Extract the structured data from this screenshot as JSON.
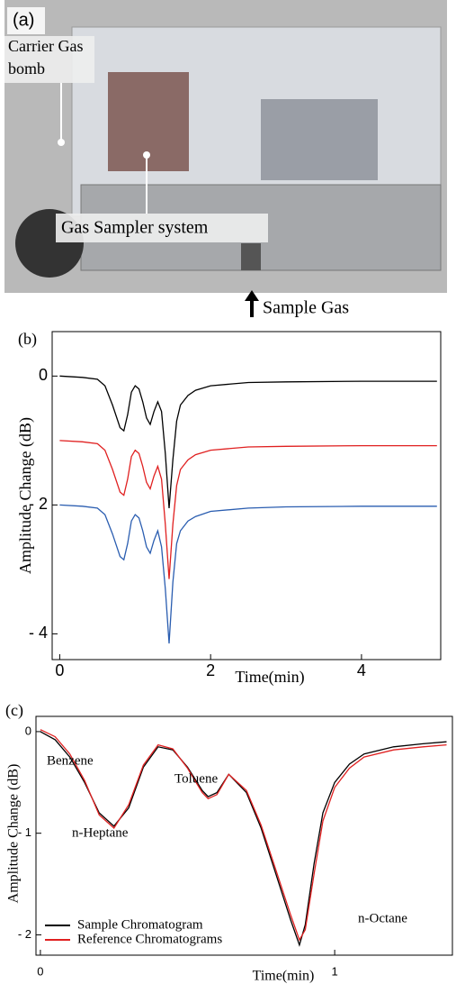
{
  "photo": {
    "panel_label": "(a)",
    "carrier_label": [
      "Carrier Gas",
      "bomb"
    ],
    "sampler_label": "Gas Sampler system",
    "inlet_label": "Sample Gas"
  },
  "chart_data": [
    {
      "type": "line",
      "panel_label": "(b)",
      "x_label": "Time(min)",
      "y_label": "Amplitude Change (dB)",
      "x": [
        0,
        0.3,
        0.5,
        0.6,
        0.7,
        0.8,
        0.85,
        0.9,
        0.95,
        1.0,
        1.05,
        1.1,
        1.15,
        1.2,
        1.25,
        1.3,
        1.35,
        1.4,
        1.45,
        1.5,
        1.55,
        1.6,
        1.7,
        1.8,
        2.0,
        2.5,
        3,
        4,
        5
      ],
      "series": [
        {
          "color": "#000000",
          "values": [
            0,
            -0.02,
            -0.05,
            -0.15,
            -0.45,
            -0.8,
            -0.85,
            -0.6,
            -0.25,
            -0.15,
            -0.2,
            -0.4,
            -0.65,
            -0.75,
            -0.55,
            -0.4,
            -0.55,
            -1.2,
            -2.05,
            -1.3,
            -0.7,
            -0.45,
            -0.3,
            -0.22,
            -0.15,
            -0.1,
            -0.09,
            -0.08,
            -0.08
          ]
        },
        {
          "color": "#e02020",
          "values": [
            -1,
            -1.02,
            -1.05,
            -1.15,
            -1.45,
            -1.8,
            -1.85,
            -1.6,
            -1.25,
            -1.15,
            -1.2,
            -1.4,
            -1.65,
            -1.75,
            -1.55,
            -1.4,
            -1.6,
            -2.3,
            -3.15,
            -2.3,
            -1.7,
            -1.45,
            -1.3,
            -1.22,
            -1.15,
            -1.1,
            -1.09,
            -1.08,
            -1.08
          ]
        },
        {
          "color": "#2a5db0",
          "values": [
            -2,
            -2.02,
            -2.05,
            -2.15,
            -2.45,
            -2.8,
            -2.85,
            -2.6,
            -2.25,
            -2.15,
            -2.2,
            -2.4,
            -2.65,
            -2.75,
            -2.55,
            -2.4,
            -2.65,
            -3.3,
            -4.15,
            -3.2,
            -2.6,
            -2.4,
            -2.25,
            -2.18,
            -2.1,
            -2.05,
            -2.03,
            -2.02,
            -2.02
          ]
        }
      ],
      "xlim": [
        -0.1,
        5.05
      ],
      "ylim": [
        -4.4,
        0.69
      ],
      "xticks": [
        0,
        2,
        4
      ],
      "yticks": [
        0,
        {
          "value": -2,
          "label": "- 2"
        },
        {
          "value": -4,
          "label": "- 4"
        }
      ]
    },
    {
      "type": "line",
      "panel_label": "(c)",
      "x_label": "Time(min)",
      "y_label": "Amplitude Change (dB)",
      "x": [
        0,
        0.05,
        0.1,
        0.15,
        0.2,
        0.25,
        0.3,
        0.35,
        0.4,
        0.45,
        0.5,
        0.55,
        0.57,
        0.6,
        0.64,
        0.7,
        0.75,
        0.8,
        0.85,
        0.88,
        0.9,
        0.93,
        0.96,
        1.0,
        1.05,
        1.1,
        1.2,
        1.3,
        1.38
      ],
      "series": [
        {
          "name": "Sample Chromatogram",
          "color": "#000000",
          "values": [
            0,
            -0.08,
            -0.25,
            -0.5,
            -0.8,
            -0.93,
            -0.75,
            -0.35,
            -0.15,
            -0.18,
            -0.35,
            -0.58,
            -0.64,
            -0.6,
            -0.42,
            -0.6,
            -0.95,
            -1.4,
            -1.85,
            -2.1,
            -1.9,
            -1.3,
            -0.8,
            -0.5,
            -0.32,
            -0.22,
            -0.15,
            -0.12,
            -0.1
          ]
        },
        {
          "name": "Reference Chromatograms",
          "color": "#e02020",
          "values": [
            0.02,
            -0.05,
            -0.22,
            -0.48,
            -0.82,
            -0.95,
            -0.72,
            -0.33,
            -0.13,
            -0.17,
            -0.36,
            -0.6,
            -0.66,
            -0.62,
            -0.42,
            -0.58,
            -0.92,
            -1.36,
            -1.8,
            -2.05,
            -1.95,
            -1.4,
            -0.88,
            -0.55,
            -0.36,
            -0.25,
            -0.18,
            -0.15,
            -0.13
          ]
        }
      ],
      "annotations": [
        "Benzene",
        "n-Heptane",
        "Toluene",
        "n-Octane"
      ],
      "legend": "lower left",
      "xlim": [
        -0.015,
        1.4
      ],
      "ylim": [
        -2.2,
        0.15
      ],
      "xticks": [
        0,
        1
      ],
      "yticks": [
        0,
        {
          "value": -1,
          "label": "- 1"
        },
        {
          "value": -2,
          "label": "- 2"
        }
      ]
    }
  ]
}
